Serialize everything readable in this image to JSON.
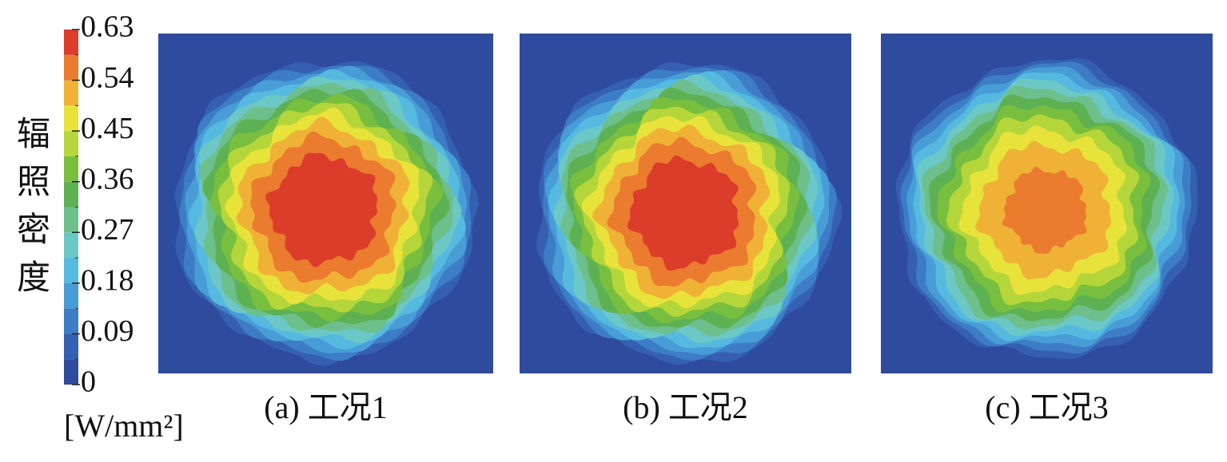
{
  "chart_data": {
    "type": "contour",
    "colorbar": {
      "label": "辐照密度",
      "unit": "[W/mm²]",
      "lim": [
        0,
        0.63
      ],
      "ticks": [
        0,
        0.09,
        0.18,
        0.27,
        0.36,
        0.45,
        0.54,
        0.63
      ],
      "levels": [
        0,
        0.045,
        0.09,
        0.135,
        0.18,
        0.225,
        0.27,
        0.315,
        0.36,
        0.405,
        0.45,
        0.495,
        0.54,
        0.585,
        0.63
      ],
      "colors": [
        "#2f4b9d",
        "#3560b1",
        "#3d7dc5",
        "#489dd7",
        "#56b9e0",
        "#6cc8c6",
        "#6dbf8c",
        "#5db152",
        "#79bf3f",
        "#b5d63a",
        "#e8e33b",
        "#efb236",
        "#ea7b2f",
        "#dc3c2a"
      ]
    },
    "panels": [
      {
        "caption": "(a) 工况1",
        "peak": 0.63
      },
      {
        "caption": "(b) 工况2",
        "peak": 0.63
      },
      {
        "caption": "(c) 工况3",
        "peak": 0.56
      }
    ]
  }
}
